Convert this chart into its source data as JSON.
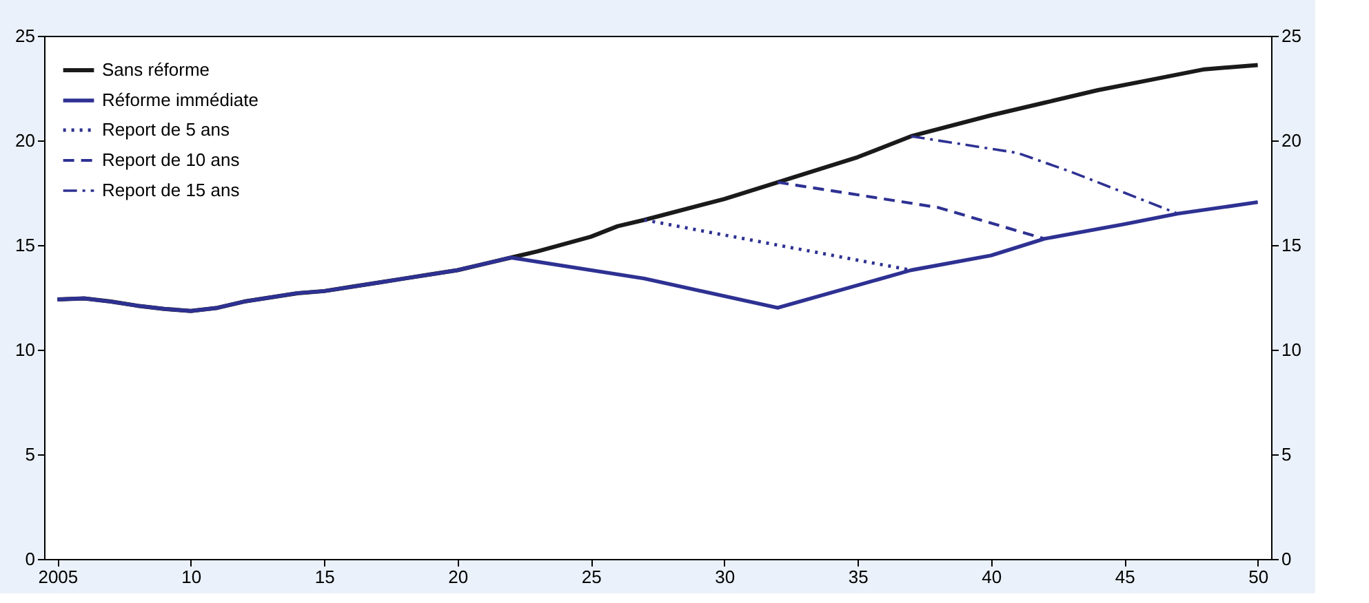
{
  "chart_data": {
    "type": "line",
    "xlim": [
      2004.5,
      2050.5
    ],
    "xticks": [
      {
        "value": 2005,
        "label": "2005"
      },
      {
        "value": 2010,
        "label": "10"
      },
      {
        "value": 2015,
        "label": "15"
      },
      {
        "value": 2020,
        "label": "20"
      },
      {
        "value": 2025,
        "label": "25"
      },
      {
        "value": 2030,
        "label": "30"
      },
      {
        "value": 2035,
        "label": "35"
      },
      {
        "value": 2040,
        "label": "40"
      },
      {
        "value": 2045,
        "label": "45"
      },
      {
        "value": 2050,
        "label": "50"
      }
    ],
    "ylim": [
      0,
      25
    ],
    "yticks": [
      0,
      5,
      10,
      15,
      20,
      25
    ],
    "y2lim": [
      0,
      25
    ],
    "y2ticks": [
      0,
      5,
      10,
      15,
      20,
      25
    ],
    "grid": false,
    "legend": "top left",
    "series": [
      {
        "name": "Sans réforme",
        "color": "#1a1a1a",
        "line_style": "solid",
        "x": [
          2005,
          2006,
          2007,
          2008,
          2009,
          2010,
          2011,
          2012,
          2013,
          2014,
          2015,
          2016,
          2017,
          2018,
          2019,
          2020,
          2021,
          2022,
          2023,
          2025,
          2026,
          2027,
          2030,
          2032,
          2035,
          2037,
          2040,
          2042,
          2044,
          2046,
          2048,
          2050
        ],
        "values": [
          12.4,
          12.45,
          12.3,
          12.1,
          11.95,
          11.85,
          12.0,
          12.3,
          12.5,
          12.7,
          12.8,
          13.0,
          13.2,
          13.4,
          13.6,
          13.8,
          14.1,
          14.4,
          14.7,
          15.4,
          15.9,
          16.2,
          17.2,
          18.0,
          19.2,
          20.2,
          21.2,
          21.8,
          22.4,
          22.9,
          23.4,
          23.6
        ]
      },
      {
        "name": "Réforme immédiate",
        "color": "#2e3192",
        "line_style": "solid",
        "x": [
          2005,
          2006,
          2007,
          2008,
          2009,
          2010,
          2011,
          2012,
          2013,
          2014,
          2015,
          2016,
          2017,
          2018,
          2019,
          2020,
          2021,
          2022,
          2027,
          2032,
          2037,
          2040,
          2042,
          2045,
          2047,
          2050
        ],
        "values": [
          12.4,
          12.45,
          12.3,
          12.1,
          11.95,
          11.85,
          12.0,
          12.3,
          12.5,
          12.7,
          12.8,
          13.0,
          13.2,
          13.4,
          13.6,
          13.8,
          14.1,
          14.4,
          13.4,
          12.0,
          13.8,
          14.5,
          15.3,
          16.0,
          16.5,
          17.05
        ]
      },
      {
        "name": "Report de 5 ans",
        "color": "#2e3192",
        "line_style": "dotted",
        "x": [
          2027,
          2032,
          2037
        ],
        "values": [
          16.2,
          15.0,
          13.8
        ]
      },
      {
        "name": "Report de 10 ans",
        "color": "#2e3192",
        "line_style": "dashed",
        "x": [
          2032,
          2035,
          2038,
          2042
        ],
        "values": [
          18.0,
          17.4,
          16.8,
          15.3
        ]
      },
      {
        "name": "Report de 15 ans",
        "color": "#2e3192",
        "line_style": "dashdot",
        "x": [
          2037,
          2041,
          2043,
          2047
        ],
        "values": [
          20.2,
          19.4,
          18.5,
          16.5
        ]
      }
    ]
  }
}
